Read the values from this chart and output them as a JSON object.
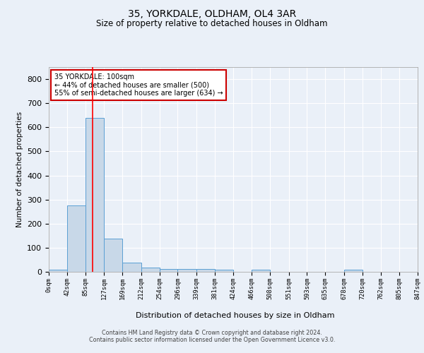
{
  "title1": "35, YORKDALE, OLDHAM, OL4 3AR",
  "title2": "Size of property relative to detached houses in Oldham",
  "xlabel": "Distribution of detached houses by size in Oldham",
  "ylabel": "Number of detached properties",
  "annotation_line1": "35 YORKDALE: 100sqm",
  "annotation_line2": "← 44% of detached houses are smaller (500)",
  "annotation_line3": "55% of semi-detached houses are larger (634) →",
  "footer1": "Contains HM Land Registry data © Crown copyright and database right 2024.",
  "footer2": "Contains public sector information licensed under the Open Government Licence v3.0.",
  "bin_edges": [
    0,
    42,
    85,
    127,
    169,
    212,
    254,
    296,
    339,
    381,
    424,
    466,
    508,
    551,
    593,
    635,
    678,
    720,
    762,
    805,
    847
  ],
  "bin_counts": [
    8,
    275,
    640,
    138,
    37,
    18,
    12,
    11,
    11,
    8,
    0,
    8,
    0,
    0,
    0,
    0,
    8,
    0,
    0,
    0
  ],
  "bar_color": "#c8d8e8",
  "bar_edge_color": "#5a9fd4",
  "red_line_x": 100,
  "ylim": [
    0,
    850
  ],
  "xlim": [
    0,
    847
  ],
  "background_color": "#eaf0f8",
  "grid_color": "#ffffff",
  "annotation_box_color": "#ffffff",
  "annotation_box_edge": "#cc0000",
  "yticks": [
    0,
    100,
    200,
    300,
    400,
    500,
    600,
    700,
    800
  ]
}
